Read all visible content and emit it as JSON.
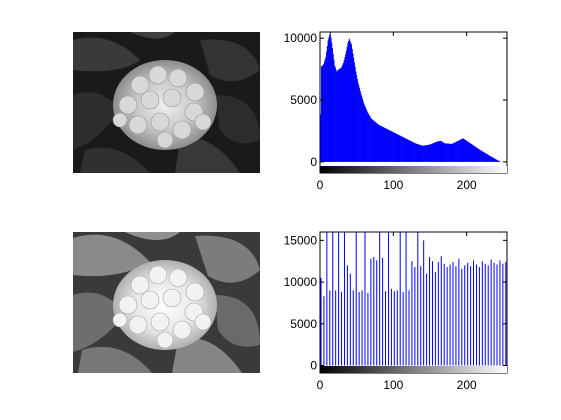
{
  "figure": {
    "panels": [
      "original-image",
      "original-histogram",
      "equalized-image",
      "equalized-histogram"
    ]
  },
  "images": [
    {
      "subject": "hydrangea flower, grayscale",
      "tone": "low-contrast original"
    },
    {
      "subject": "hydrangea flower, grayscale",
      "tone": "histogram-equalized, higher contrast"
    }
  ],
  "colors": {
    "bars": "#0000ff",
    "axis": "#000000",
    "background": "#ffffff"
  },
  "chart_data": [
    {
      "type": "bar",
      "title": "",
      "xlabel": "",
      "ylabel": "",
      "xlim": [
        0,
        255
      ],
      "ylim": [
        -900,
        10500
      ],
      "xticks": [
        0,
        100,
        200
      ],
      "yticks": [
        0,
        5000,
        10000
      ],
      "grid": false,
      "colorbar": "grayscale 0-255 below axis",
      "profile": [
        [
          0,
          0
        ],
        [
          2,
          7700
        ],
        [
          5,
          7900
        ],
        [
          8,
          8500
        ],
        [
          11,
          9800
        ],
        [
          14,
          10500
        ],
        [
          17,
          9200
        ],
        [
          20,
          7800
        ],
        [
          23,
          7300
        ],
        [
          26,
          7500
        ],
        [
          29,
          7600
        ],
        [
          32,
          8000
        ],
        [
          35,
          8700
        ],
        [
          38,
          9600
        ],
        [
          40,
          9950
        ],
        [
          43,
          9500
        ],
        [
          46,
          8400
        ],
        [
          49,
          7300
        ],
        [
          52,
          6400
        ],
        [
          56,
          5500
        ],
        [
          60,
          4700
        ],
        [
          65,
          4000
        ],
        [
          70,
          3500
        ],
        [
          80,
          3000
        ],
        [
          90,
          2700
        ],
        [
          100,
          2400
        ],
        [
          110,
          2100
        ],
        [
          120,
          1800
        ],
        [
          130,
          1500
        ],
        [
          140,
          1300
        ],
        [
          150,
          1400
        ],
        [
          160,
          1650
        ],
        [
          165,
          1700
        ],
        [
          170,
          1500
        ],
        [
          180,
          1450
        ],
        [
          190,
          1750
        ],
        [
          195,
          1900
        ],
        [
          200,
          1700
        ],
        [
          210,
          1300
        ],
        [
          220,
          900
        ],
        [
          230,
          550
        ],
        [
          240,
          200
        ],
        [
          245,
          50
        ],
        [
          246,
          0
        ]
      ]
    },
    {
      "type": "bar",
      "title": "",
      "xlabel": "",
      "ylabel": "",
      "xlim": [
        0,
        255
      ],
      "ylim": [
        -900,
        16000
      ],
      "xticks": [
        0,
        100,
        200
      ],
      "yticks": [
        0,
        5000,
        10000,
        15000
      ],
      "grid": false,
      "colorbar": "grayscale 0-255 below axis",
      "x": [
        0,
        4,
        8,
        12,
        16,
        20,
        24,
        28,
        32,
        36,
        40,
        44,
        48,
        52,
        56,
        60,
        64,
        68,
        72,
        76,
        80,
        84,
        88,
        92,
        96,
        100,
        104,
        108,
        112,
        116,
        120,
        124,
        128,
        132,
        136,
        140,
        144,
        148,
        152,
        156,
        160,
        164,
        168,
        172,
        176,
        180,
        184,
        188,
        192,
        196,
        200,
        204,
        208,
        212,
        216,
        220,
        224,
        228,
        232,
        236,
        240,
        244,
        248,
        252
      ],
      "values": [
        10500,
        8300,
        16000,
        9000,
        16000,
        9000,
        16000,
        8800,
        16000,
        12000,
        11000,
        9000,
        16000,
        8800,
        9000,
        16000,
        8700,
        12800,
        13000,
        12600,
        16000,
        12900,
        8900,
        16000,
        9200,
        8900,
        9000,
        16000,
        8800,
        16000,
        9000,
        12500,
        11800,
        16000,
        11900,
        15000,
        11000,
        13000,
        12500,
        11200,
        12400,
        13100,
        12200,
        11800,
        12100,
        12400,
        11900,
        12800,
        11600,
        12000,
        12300,
        11900,
        12600,
        12100,
        11800,
        12500,
        12200,
        12000,
        12700,
        12300,
        12100,
        12600,
        12200,
        12400
      ]
    }
  ]
}
